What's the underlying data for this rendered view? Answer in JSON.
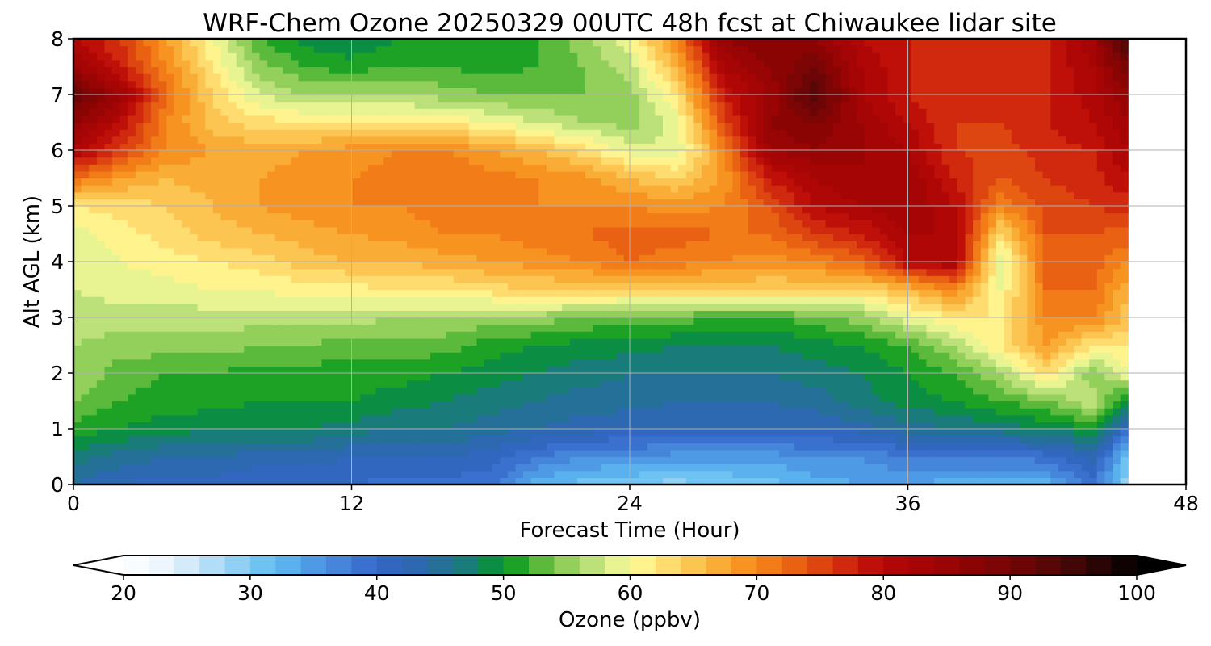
{
  "chart_data": {
    "type": "heatmap",
    "title": "WRF-Chem Ozone  20250329 00UTC 48h fcst at Chiwaukee lidar site",
    "xlabel": "Forecast Time (Hour)",
    "ylabel": "Alt AGL (km)",
    "xlim": [
      0,
      48
    ],
    "ylim": [
      0,
      8
    ],
    "xticks": [
      "0",
      "12",
      "24",
      "36",
      "48"
    ],
    "yticks": [
      "0",
      "1",
      "2",
      "3",
      "4",
      "5",
      "6",
      "7",
      "8"
    ],
    "grid": true,
    "data_end_hour": 45.5,
    "x": [
      0,
      2,
      4,
      6,
      8,
      10,
      12,
      14,
      16,
      18,
      20,
      22,
      24,
      26,
      28,
      30,
      32,
      34,
      36,
      38,
      40,
      42,
      44,
      45.5
    ],
    "y": [
      0,
      0.5,
      1,
      1.5,
      2,
      2.5,
      3,
      3.5,
      4,
      4.5,
      5,
      5.5,
      6,
      6.5,
      7,
      7.5,
      8
    ],
    "z": [
      [
        44,
        42,
        41,
        41,
        40,
        40,
        40,
        39,
        39,
        39,
        33,
        31,
        30,
        29,
        30,
        31,
        33,
        34,
        34,
        33,
        33,
        33,
        39,
        28
      ],
      [
        47,
        45,
        44,
        44,
        43,
        43,
        42,
        42,
        42,
        41,
        38,
        36,
        36,
        35,
        35,
        35,
        36,
        36,
        38,
        38,
        38,
        39,
        43,
        30
      ],
      [
        51,
        50,
        49,
        48,
        48,
        48,
        47,
        46,
        46,
        45,
        44,
        43,
        42,
        42,
        42,
        42,
        42,
        43,
        45,
        46,
        47,
        48,
        50,
        40
      ],
      [
        54,
        52,
        51,
        51,
        50,
        50,
        50,
        49,
        48,
        47,
        46,
        45,
        45,
        44,
        44,
        44,
        45,
        47,
        49,
        50,
        52,
        54,
        58,
        48
      ],
      [
        56,
        53,
        52,
        52,
        51,
        51,
        51,
        51,
        50,
        49,
        48,
        47,
        46,
        46,
        46,
        46,
        47,
        48,
        50,
        52,
        56,
        63,
        54,
        60
      ],
      [
        56,
        55,
        55,
        55,
        54,
        54,
        53,
        53,
        53,
        51,
        50,
        49,
        49,
        48,
        48,
        48,
        49,
        50,
        52,
        56,
        62,
        68,
        62,
        62
      ],
      [
        57,
        57,
        57,
        57,
        57,
        57,
        57,
        56,
        56,
        55,
        55,
        54,
        53,
        53,
        52,
        52,
        53,
        55,
        59,
        62,
        62,
        70,
        70,
        65
      ],
      [
        58,
        59,
        59,
        60,
        60,
        61,
        61,
        62,
        62,
        63,
        64,
        64,
        64,
        64,
        64,
        64,
        64,
        63,
        66,
        70,
        60,
        72,
        72,
        66
      ],
      [
        58,
        60,
        61,
        62,
        63,
        65,
        66,
        66,
        67,
        68,
        69,
        70,
        72,
        71,
        70,
        69,
        70,
        73,
        80,
        82,
        58,
        73,
        73,
        70
      ],
      [
        59,
        61,
        63,
        65,
        66,
        67,
        68,
        69,
        70,
        70,
        71,
        72,
        73,
        73,
        72,
        72,
        76,
        78,
        82,
        82,
        63,
        74,
        74,
        73
      ],
      [
        62,
        63,
        64,
        66,
        68,
        69,
        70,
        70,
        71,
        71,
        70,
        70,
        70,
        69,
        70,
        74,
        80,
        82,
        84,
        80,
        70,
        75,
        76,
        77
      ],
      [
        72,
        68,
        66,
        67,
        68,
        69,
        70,
        71,
        72,
        71,
        70,
        69,
        66,
        64,
        68,
        78,
        82,
        84,
        84,
        78,
        74,
        76,
        77,
        80
      ],
      [
        82,
        76,
        70,
        68,
        67,
        68,
        69,
        70,
        70,
        68,
        66,
        63,
        59,
        58,
        70,
        84,
        86,
        84,
        82,
        76,
        75,
        77,
        78,
        82
      ],
      [
        86,
        80,
        70,
        65,
        63,
        62,
        62,
        62,
        62,
        60,
        58,
        56,
        55,
        59,
        74,
        86,
        88,
        84,
        80,
        76,
        76,
        78,
        80,
        84
      ],
      [
        92,
        84,
        72,
        64,
        58,
        56,
        56,
        56,
        55,
        54,
        54,
        54,
        55,
        62,
        78,
        84,
        94,
        82,
        78,
        76,
        76,
        78,
        81,
        86
      ],
      [
        84,
        78,
        70,
        62,
        55,
        52,
        51,
        52,
        52,
        51,
        52,
        54,
        57,
        66,
        82,
        86,
        90,
        82,
        78,
        76,
        76,
        78,
        82,
        90
      ],
      [
        80,
        76,
        68,
        60,
        52,
        49,
        48,
        50,
        52,
        50,
        52,
        55,
        60,
        70,
        86,
        88,
        86,
        80,
        78,
        76,
        76,
        78,
        84,
        96
      ]
    ],
    "colorbar": {
      "label": "Ozone  (ppbv)",
      "min": 20,
      "max": 100,
      "step": 2,
      "tick_labels": [
        "20",
        "30",
        "40",
        "50",
        "60",
        "70",
        "80",
        "90",
        "100"
      ],
      "extend": "both",
      "stops": [
        [
          20,
          "#ffffff"
        ],
        [
          24,
          "#e6f3fb"
        ],
        [
          28,
          "#9fd6f5"
        ],
        [
          32,
          "#5fbcf2"
        ],
        [
          36,
          "#4a8fe0"
        ],
        [
          40,
          "#3466c8"
        ],
        [
          44,
          "#2a6aa8"
        ],
        [
          48,
          "#15826a"
        ],
        [
          50,
          "#009a1e"
        ],
        [
          52,
          "#3aaa2c"
        ],
        [
          54,
          "#7cc84c"
        ],
        [
          56,
          "#a8d86a"
        ],
        [
          58,
          "#d0ea8a"
        ],
        [
          60,
          "#fffd9a"
        ],
        [
          62,
          "#ffe880"
        ],
        [
          64,
          "#fdd060"
        ],
        [
          66,
          "#fbba44"
        ],
        [
          68,
          "#f8a028"
        ],
        [
          70,
          "#f5881a"
        ],
        [
          72,
          "#ee7016"
        ],
        [
          74,
          "#e45412"
        ],
        [
          76,
          "#d8380f"
        ],
        [
          78,
          "#c81a0c"
        ],
        [
          80,
          "#b40606"
        ],
        [
          84,
          "#a00404"
        ],
        [
          88,
          "#840404"
        ],
        [
          92,
          "#640606"
        ],
        [
          96,
          "#380606"
        ],
        [
          100,
          "#000000"
        ]
      ]
    }
  }
}
